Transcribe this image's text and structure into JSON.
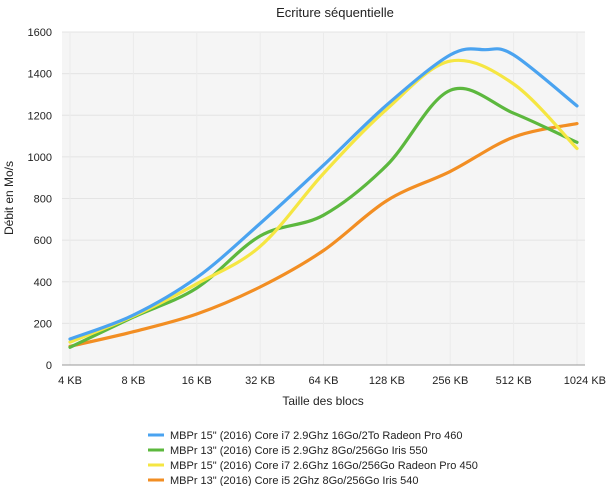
{
  "chart_data": {
    "type": "line",
    "title": "Ecriture séquentielle",
    "xlabel": "Taille des blocs",
    "ylabel": "Débit en Mo/s",
    "ylim": [
      0,
      1600
    ],
    "yticks": [
      0,
      200,
      400,
      600,
      800,
      1000,
      1200,
      1400,
      1600
    ],
    "categories": [
      "4 KB",
      "8 KB",
      "16 KB",
      "32 KB",
      "64 KB",
      "128 KB",
      "256 KB",
      "512 KB",
      "1024 KB"
    ],
    "grid": true,
    "legend_position": "bottom",
    "series": [
      {
        "name": "MBPr 15\" (2016) Core i7 2.9Ghz 16Go/2To Radeon Pro 460",
        "color": "#4aa3f0",
        "values": [
          125,
          240,
          420,
          680,
          960,
          1250,
          1490,
          1490,
          1245
        ],
        "peak": {
          "x": 6.55,
          "y": 1515
        }
      },
      {
        "name": "MBPr 13\" (2016) Core i5 2.9Ghz 8Go/256Go Iris 550",
        "color": "#5cb83e",
        "values": [
          85,
          230,
          370,
          620,
          720,
          960,
          1320,
          1210,
          1070
        ]
      },
      {
        "name": "MBPr 15\" (2016) Core i7 2.6Ghz 16Go/256Go Radeon Pro 450",
        "color": "#f5e642",
        "values": [
          110,
          235,
          390,
          570,
          920,
          1230,
          1460,
          1350,
          1040
        ]
      },
      {
        "name": "MBPr 13\" (2016) Core i5 2Ghz 8Go/256Go Iris 540",
        "color": "#f28e23",
        "values": [
          90,
          160,
          245,
          375,
          550,
          790,
          930,
          1095,
          1160
        ]
      }
    ]
  }
}
